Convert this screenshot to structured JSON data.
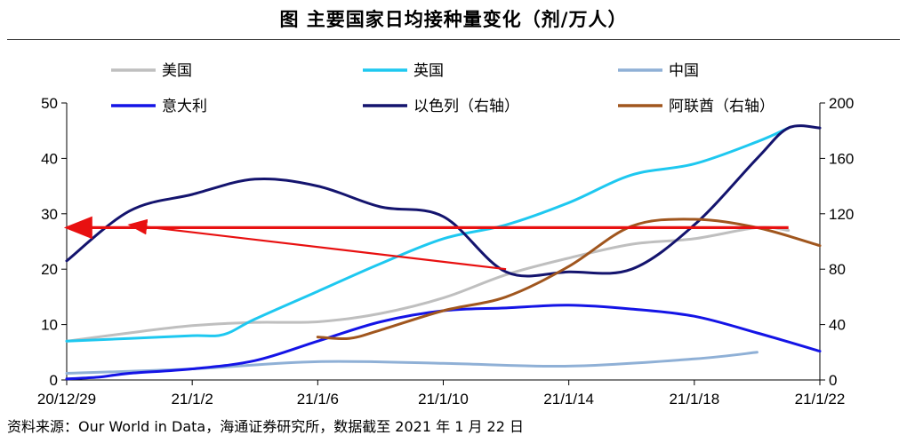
{
  "title": "图  主要国家日均接种量变化（剂/万人）",
  "source": "资料来源：Our World in Data，海通证券研究所，数据截至 2021 年 1 月 22 日",
  "chart_data": {
    "type": "line",
    "title": "图  主要国家日均接种量变化（剂/万人）",
    "x_labels": [
      "20/12/29",
      "21/1/2",
      "21/1/6",
      "21/1/10",
      "21/1/14",
      "21/1/18",
      "21/1/22"
    ],
    "x_range": [
      "2020-12-29",
      "2021-01-22"
    ],
    "y_left": {
      "range": [
        0,
        50
      ],
      "ticks": [
        0,
        10,
        20,
        30,
        40,
        50
      ]
    },
    "y_right": {
      "range": [
        0,
        200
      ],
      "ticks": [
        0,
        40,
        80,
        120,
        160,
        200
      ]
    },
    "grid": false,
    "legend_position": "top",
    "series": [
      {
        "name": "美国",
        "color": "#bfbfbf",
        "axis": "left",
        "x": [
          "2020-12-29",
          "2020-12-31",
          "2021-01-02",
          "2021-01-04",
          "2021-01-06",
          "2021-01-08",
          "2021-01-10",
          "2021-01-12",
          "2021-01-14",
          "2021-01-16",
          "2021-01-18",
          "2021-01-20",
          "2021-01-21"
        ],
        "y": [
          7.0,
          8.5,
          9.8,
          10.4,
          10.5,
          12.0,
          14.8,
          19.0,
          22.0,
          24.5,
          25.5,
          27.5,
          27.0
        ]
      },
      {
        "name": "英国",
        "color": "#1ec8f0",
        "axis": "left",
        "x": [
          "2020-12-29",
          "2020-12-31",
          "2021-01-02",
          "2021-01-03",
          "2021-01-04",
          "2021-01-06",
          "2021-01-08",
          "2021-01-10",
          "2021-01-12",
          "2021-01-14",
          "2021-01-16",
          "2021-01-18",
          "2021-01-20",
          "2021-01-21"
        ],
        "y": [
          7.0,
          7.5,
          8.0,
          8.2,
          11.0,
          16.0,
          21.0,
          25.5,
          28.0,
          32.0,
          37.0,
          39.0,
          43.0,
          45.5
        ]
      },
      {
        "name": "中国",
        "color": "#8fb0d6",
        "axis": "left",
        "x": [
          "2020-12-29",
          "2021-01-02",
          "2021-01-06",
          "2021-01-10",
          "2021-01-14",
          "2021-01-18",
          "2021-01-20"
        ],
        "y": [
          1.2,
          2.0,
          3.3,
          3.0,
          2.5,
          3.8,
          5.0
        ]
      },
      {
        "name": "意大利",
        "color": "#1414e6",
        "axis": "left",
        "x": [
          "2020-12-29",
          "2020-12-30",
          "2020-12-31",
          "2021-01-02",
          "2021-01-04",
          "2021-01-06",
          "2021-01-08",
          "2021-01-10",
          "2021-01-12",
          "2021-01-14",
          "2021-01-16",
          "2021-01-18",
          "2021-01-20",
          "2021-01-22"
        ],
        "y": [
          0.2,
          0.5,
          1.2,
          2.0,
          3.5,
          7.0,
          10.5,
          12.5,
          13.0,
          13.5,
          12.8,
          11.5,
          8.5,
          5.2
        ]
      },
      {
        "name": "以色列（右轴）",
        "color": "#14146e",
        "axis": "right",
        "x": [
          "2020-12-29",
          "2020-12-31",
          "2021-01-02",
          "2021-01-04",
          "2021-01-06",
          "2021-01-08",
          "2021-01-10",
          "2021-01-12",
          "2021-01-14",
          "2021-01-16",
          "2021-01-18",
          "2021-01-20",
          "2021-01-21",
          "2021-01-22"
        ],
        "y": [
          86,
          122,
          134,
          145,
          140,
          125,
          118,
          78,
          78,
          80,
          112,
          160,
          182,
          182
        ]
      },
      {
        "name": "阿联酋（右轴）",
        "color": "#a0561e",
        "axis": "right",
        "x": [
          "2021-01-06",
          "2021-01-07",
          "2021-01-08",
          "2021-01-10",
          "2021-01-12",
          "2021-01-14",
          "2021-01-16",
          "2021-01-18",
          "2021-01-20",
          "2021-01-22"
        ],
        "y": [
          31,
          30,
          36,
          50,
          60,
          82,
          111,
          116,
          110,
          97
        ]
      }
    ],
    "annotations": [
      {
        "type": "arrow",
        "color": "#e81010",
        "from": {
          "x": "2021-01-12",
          "y": 20
        },
        "to": {
          "x": "2020-12-31",
          "y": 28
        }
      },
      {
        "type": "arrow",
        "color": "#e81010",
        "from": {
          "x": "2021-01-21",
          "y": 27.5
        },
        "to": {
          "x": "2020-12-29",
          "y": 27.5
        }
      }
    ]
  },
  "icons": {
    "line-swatch": "short colored line segment"
  }
}
